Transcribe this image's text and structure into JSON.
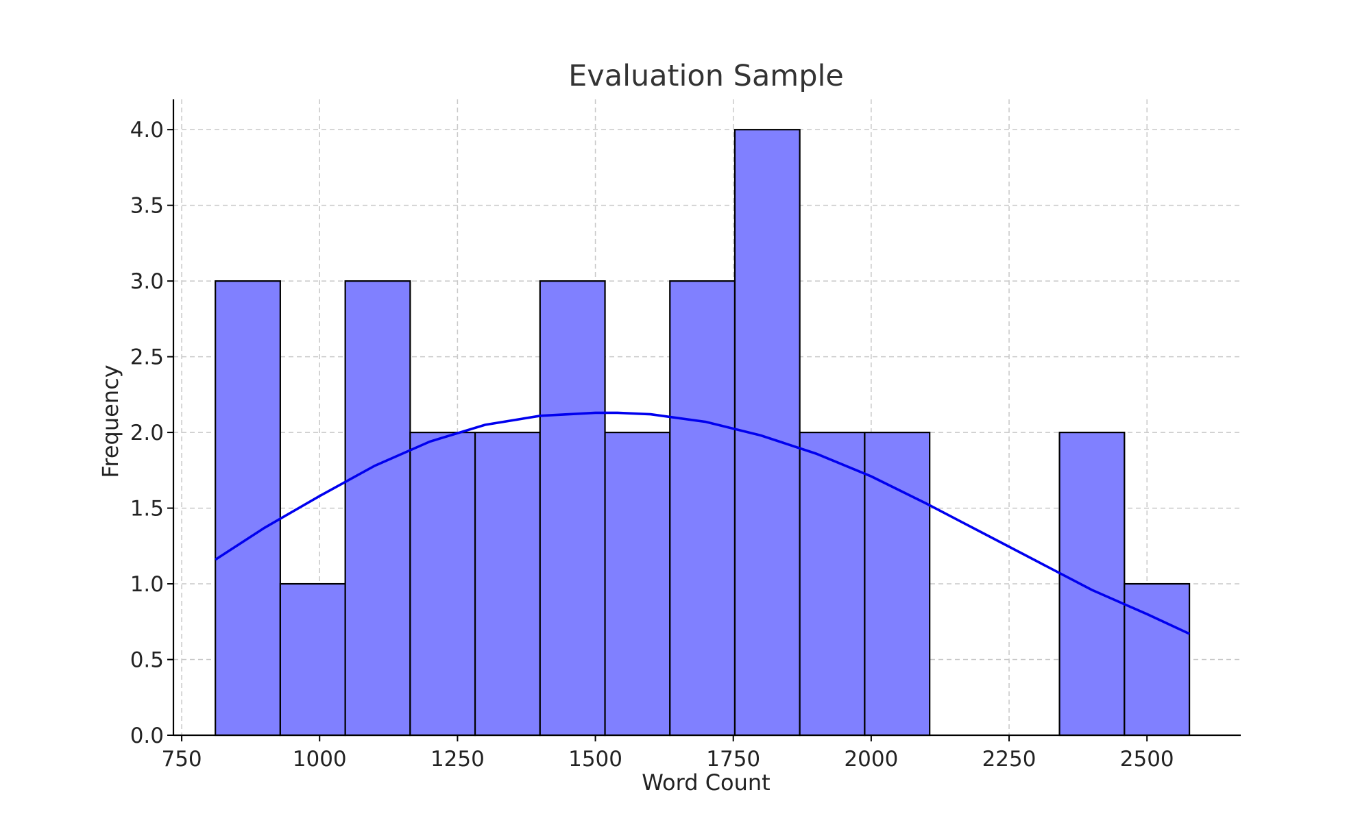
{
  "chart_data": {
    "type": "bar",
    "title": "Evaluation Sample",
    "xlabel": "Word Count",
    "ylabel": "Frequency",
    "xlim": [
      735,
      2670
    ],
    "ylim": [
      0,
      4.2
    ],
    "x_ticks": [
      "750",
      "1000",
      "1250",
      "1500",
      "1750",
      "2000",
      "2250",
      "2500"
    ],
    "y_ticks": [
      "0.0",
      "0.5",
      "1.0",
      "1.5",
      "2.0",
      "2.5",
      "3.0",
      "3.5",
      "4.0"
    ],
    "bin_edges": [
      811,
      928.7,
      1046.5,
      1164.2,
      1281.9,
      1399.6,
      1517.4,
      1635.1,
      1752.8,
      1870.5,
      1988.2,
      2106,
      2223.7,
      2341.4,
      2459.1,
      2576.9
    ],
    "values": [
      3,
      1,
      3,
      2,
      2,
      3,
      2,
      3,
      4,
      2,
      2,
      0,
      0,
      2,
      1
    ],
    "kde_curve": {
      "x": [
        811,
        900,
        1000,
        1100,
        1200,
        1300,
        1400,
        1500,
        1540,
        1600,
        1700,
        1800,
        1900,
        2000,
        2100,
        2200,
        2300,
        2400,
        2500,
        2577
      ],
      "y": [
        1.16,
        1.37,
        1.58,
        1.78,
        1.94,
        2.05,
        2.11,
        2.13,
        2.13,
        2.12,
        2.07,
        1.98,
        1.86,
        1.71,
        1.53,
        1.34,
        1.15,
        0.96,
        0.8,
        0.67
      ]
    },
    "bar_color": "#8080ff",
    "line_color": "#0000ee",
    "grid": true
  }
}
